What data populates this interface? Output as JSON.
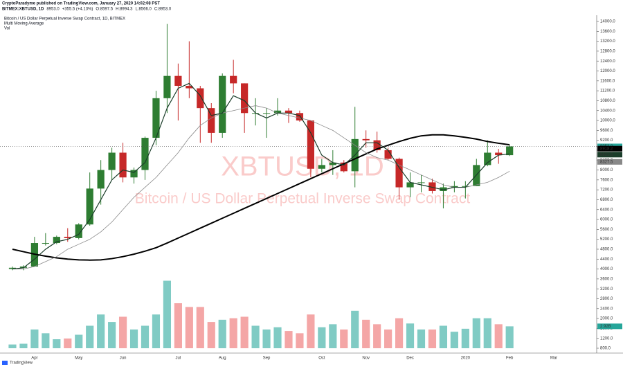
{
  "chart_data": {
    "type": "candlestick",
    "publisher": "CryptoParadyme published on TradingView.com, January 27, 2020 14:02:08 PST",
    "symbol_line": [
      "BITMEX:XBTUSD, 1D",
      "8953.0",
      "+355.5 (+4.13%)",
      "O:8597.5",
      "H:8994.3",
      "L:8566.0",
      "C:8953.0"
    ],
    "studies": [
      "Bitcoin / US Dollar Perpetual Inverse Swap Contract, 1D, BITMEX",
      "Multi Moving Average",
      "Vol"
    ],
    "watermark": [
      "XBTUSD, 1D",
      "Bitcoin / US Dollar Perpetual Inverse Swap Contract"
    ],
    "brand": "TradingView",
    "up_color": "#2e7d32",
    "down_color": "#c62828",
    "vol_up_color": "#80cbc4",
    "vol_down_color": "#f4a6a6",
    "categories": [
      null,
      null,
      "Apr",
      null,
      null,
      null,
      "May",
      null,
      null,
      null,
      "Jun",
      null,
      null,
      null,
      null,
      "Jul",
      null,
      null,
      null,
      "Aug",
      null,
      null,
      null,
      "Sep",
      null,
      null,
      null,
      null,
      "Oct",
      null,
      null,
      null,
      "Nov",
      null,
      null,
      null,
      "Dec",
      null,
      null,
      null,
      null,
      "2020",
      null,
      null,
      null,
      "Feb",
      null,
      null,
      null,
      "Mar",
      null
    ],
    "open": [
      4000,
      4050,
      4100,
      5050,
      5050,
      5300,
      5250,
      5800,
      7250,
      8000,
      8700,
      7700,
      8000,
      9300,
      10900,
      11800,
      11400,
      11300,
      10500,
      9500,
      11800,
      11500,
      10300,
      10300,
      10300,
      10400,
      10300,
      10000,
      8050,
      8200,
      8300,
      7950,
      9250,
      9200,
      8800,
      8450,
      7300,
      7500,
      7500,
      7150,
      7300,
      7350,
      7350,
      8200,
      8700,
      8600,
      null,
      null,
      null,
      null,
      null
    ],
    "high": [
      4100,
      4150,
      5300,
      5450,
      5350,
      5650,
      5850,
      7900,
      8400,
      8900,
      9100,
      8100,
      9350,
      11200,
      13900,
      12300,
      13200,
      11400,
      10700,
      11900,
      12450,
      11500,
      10900,
      10500,
      10900,
      10500,
      10400,
      10000,
      8450,
      8800,
      8400,
      10550,
      9600,
      9550,
      8900,
      8500,
      7900,
      7800,
      7650,
      7450,
      7550,
      7550,
      8450,
      9200,
      8850,
      8994.3,
      null,
      null,
      null,
      null,
      null
    ],
    "low": [
      3950,
      3950,
      4100,
      4950,
      5000,
      5100,
      5200,
      5750,
      6600,
      7600,
      7500,
      7450,
      7600,
      9000,
      10300,
      10000,
      10900,
      9100,
      9100,
      9300,
      11100,
      9500,
      9800,
      9300,
      10200,
      9900,
      9950,
      7700,
      7900,
      7800,
      7900,
      7300,
      8900,
      8700,
      8400,
      6800,
      6900,
      7100,
      7050,
      6450,
      7100,
      6850,
      7350,
      8150,
      8250,
      8566,
      null,
      null,
      null,
      null,
      null
    ],
    "close": [
      4050,
      4100,
      5050,
      5050,
      5300,
      5250,
      5800,
      7250,
      8000,
      8700,
      7700,
      8000,
      9300,
      10900,
      11800,
      11400,
      11300,
      10500,
      9500,
      11800,
      11500,
      10300,
      10300,
      10300,
      10400,
      10300,
      10000,
      8050,
      8200,
      8300,
      7950,
      9250,
      9200,
      8800,
      8450,
      7300,
      7500,
      7500,
      7150,
      7300,
      7350,
      7350,
      8200,
      8700,
      8600,
      8953,
      null,
      null,
      null,
      null,
      null
    ],
    "volume": [
      0.5,
      0.6,
      2.5,
      2.0,
      1.2,
      1.3,
      1.8,
      3.0,
      4.5,
      3.5,
      4.2,
      2.5,
      3.0,
      4.5,
      9.0,
      6.0,
      5.5,
      5.5,
      3.5,
      3.8,
      4.0,
      4.2,
      3.0,
      2.5,
      2.8,
      2.3,
      2.0,
      4.5,
      2.8,
      3.2,
      2.5,
      5.0,
      3.8,
      3.2,
      2.5,
      4.0,
      3.3,
      2.5,
      2.5,
      3.0,
      2.2,
      2.6,
      4.0,
      4.0,
      3.2,
      2.92,
      null,
      null,
      null,
      null,
      null
    ],
    "vol_ylim": [
      0,
      12
    ],
    "series": [
      {
        "color": "#000000",
        "width": 2,
        "values": [
          4800,
          4700,
          4600,
          4520,
          4450,
          4400,
          4370,
          4360,
          4370,
          4420,
          4500,
          4600,
          4720,
          4860,
          5050,
          5250,
          5450,
          5650,
          5850,
          6050,
          6250,
          6450,
          6650,
          6850,
          7050,
          7250,
          7450,
          7650,
          7850,
          8050,
          8250,
          8450,
          8650,
          8850,
          9000,
          9150,
          9280,
          9380,
          9420,
          9420,
          9380,
          9320,
          9250,
          9150,
          9080,
          9020,
          null,
          null,
          null,
          null,
          null
        ]
      },
      {
        "color": "#888888",
        "width": 0.8,
        "values": [
          4000,
          4000,
          4100,
          4300,
          4500,
          4800,
          5000,
          5200,
          5500,
          5900,
          6400,
          6900,
          7300,
          7700,
          8200,
          8700,
          9300,
          9800,
          10100,
          10300,
          10400,
          10500,
          10600,
          10500,
          10300,
          10200,
          10100,
          10000,
          9800,
          9600,
          9300,
          9000,
          8700,
          8500,
          8400,
          8200,
          8000,
          7800,
          7600,
          7400,
          7300,
          7300,
          7400,
          7500,
          7700,
          7950,
          null,
          null,
          null,
          null,
          null
        ]
      },
      {
        "color": "#1b3d2a",
        "width": 1.2,
        "values": [
          4000,
          4050,
          4400,
          4800,
          5100,
          5200,
          5400,
          6000,
          6800,
          7600,
          8000,
          7900,
          8300,
          9300,
          10500,
          11300,
          11500,
          11000,
          10200,
          10300,
          11000,
          10800,
          10300,
          10100,
          10300,
          10300,
          10200,
          9500,
          8600,
          8300,
          8200,
          8600,
          9100,
          9100,
          8800,
          8100,
          7500,
          7400,
          7300,
          7200,
          7300,
          7300,
          7800,
          8300,
          8600,
          8650,
          null,
          null,
          null,
          null,
          null
        ]
      }
    ],
    "price_labels": [
      {
        "value": 8953,
        "label": "8953.0",
        "color": "#26a69a"
      },
      {
        "value": 8918.2,
        "label": "8918.2",
        "color": "#000000"
      },
      {
        "value": 8621.5,
        "label": "8621.5",
        "color": "#1b3d2a"
      },
      {
        "value": 8327.5,
        "label": "8327.5",
        "color": "#888888"
      }
    ],
    "vol_label": {
      "value": 2.92,
      "label": "2.92B",
      "color": "#26a69a"
    },
    "ylim": [
      800,
      14000
    ],
    "yticks": [
      {
        "value": 800,
        "label": "800.0"
      },
      {
        "value": 1200,
        "label": "1200.0"
      },
      {
        "value": 1600,
        "label": "1600.0"
      },
      {
        "value": 2000,
        "label": "2000.0"
      },
      {
        "value": 2400,
        "label": "2400.0"
      },
      {
        "value": 2800,
        "label": "2800.0"
      },
      {
        "value": 3200,
        "label": "3200.0"
      },
      {
        "value": 3600,
        "label": "3600.0"
      },
      {
        "value": 4000,
        "label": "4000.0"
      },
      {
        "value": 4400,
        "label": "4400.0"
      },
      {
        "value": 4800,
        "label": "4800.0"
      },
      {
        "value": 5200,
        "label": "5200.0"
      },
      {
        "value": 5600,
        "label": "5600.0"
      },
      {
        "value": 6000,
        "label": "6000.0"
      },
      {
        "value": 6400,
        "label": "6400.0"
      },
      {
        "value": 6800,
        "label": "6800.0"
      },
      {
        "value": 7200,
        "label": "7200.0"
      },
      {
        "value": 7600,
        "label": "7600.0"
      },
      {
        "value": 8000,
        "label": "8000.0"
      },
      {
        "value": 8400,
        "label": "8400.0"
      },
      {
        "value": 8800,
        "label": "8800.0"
      },
      {
        "value": 9200,
        "label": "9200.0"
      },
      {
        "value": 9600,
        "label": "9600.0"
      },
      {
        "value": 10000,
        "label": "10000.0"
      },
      {
        "value": 10400,
        "label": "10400.0"
      },
      {
        "value": 10800,
        "label": "10800.0"
      },
      {
        "value": 11200,
        "label": "11200.0"
      },
      {
        "value": 11600,
        "label": "11600.0"
      },
      {
        "value": 12000,
        "label": "12000.0"
      },
      {
        "value": 12400,
        "label": "12400.0"
      },
      {
        "value": 12800,
        "label": "12800.0"
      },
      {
        "value": 13200,
        "label": "13200.0"
      },
      {
        "value": 13600,
        "label": "13600.0"
      },
      {
        "value": 14000,
        "label": "14000.0"
      }
    ]
  }
}
